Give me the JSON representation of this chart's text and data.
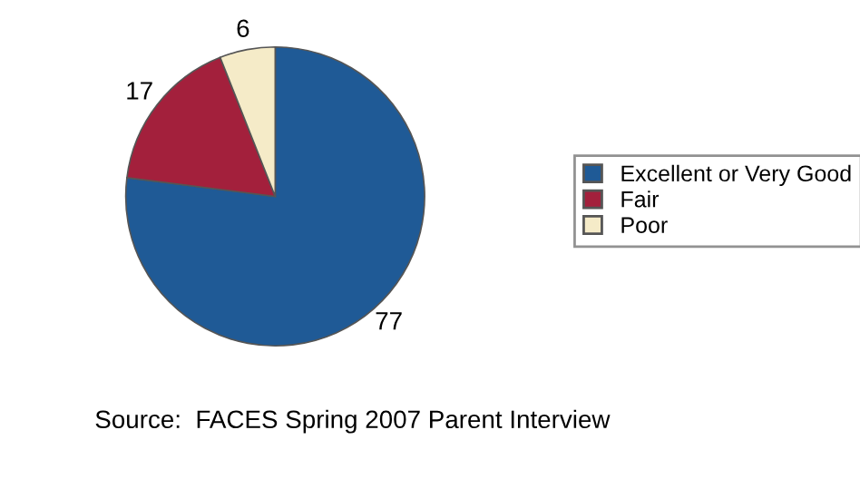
{
  "chart_data": {
    "type": "pie",
    "categories": [
      "Excellent or Very Good",
      "Fair",
      "Poor"
    ],
    "values": [
      77,
      17,
      6
    ],
    "colors": [
      "#1f5a96",
      "#a3203c",
      "#f5ebc8"
    ],
    "data_labels": true,
    "legend": "right",
    "annotations": [
      "Source:  FACES Spring 2007 Parent Interview"
    ]
  }
}
